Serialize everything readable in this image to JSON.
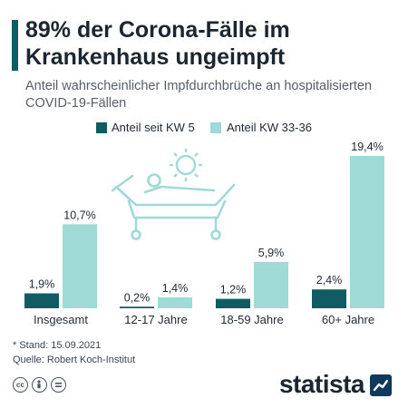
{
  "header": {
    "title": "89% der Corona-Fälle im Krankenhaus ungeimpft",
    "subtitle": "Anteil wahrscheinlicher Impfdurchbrüche an hospitalisierten COVID-19-Fällen"
  },
  "colors": {
    "series_dark": "#115b62",
    "series_light": "#9fdad6",
    "accent": "#0f5d67",
    "illustration": "#9fdad6",
    "logo": "#0f3a5c"
  },
  "chart_data": {
    "type": "bar",
    "categories": [
      "Insgesamt",
      "12-17 Jahre",
      "18-59 Jahre",
      "60+ Jahre"
    ],
    "series": [
      {
        "name": "Anteil seit KW 5",
        "values": [
          1.9,
          0.2,
          1.2,
          2.4
        ],
        "labels": [
          "1,9%",
          "0,2%",
          "1,2%",
          "2,4%"
        ]
      },
      {
        "name": "Anteil KW 33-36",
        "values": [
          10.7,
          1.4,
          5.9,
          19.4
        ],
        "labels": [
          "10,7%",
          "1,4%",
          "5,9%",
          "19,4%"
        ]
      }
    ],
    "ylim": [
      0,
      19.4
    ],
    "legend_position": "top-right",
    "grid": false
  },
  "footer": {
    "note": "* Stand: 15.09.2021",
    "source": "Quelle: Robert Koch-Institut",
    "license_icons": [
      "cc-icon",
      "by-person-icon",
      "equal-icon"
    ],
    "brand": "statista"
  }
}
